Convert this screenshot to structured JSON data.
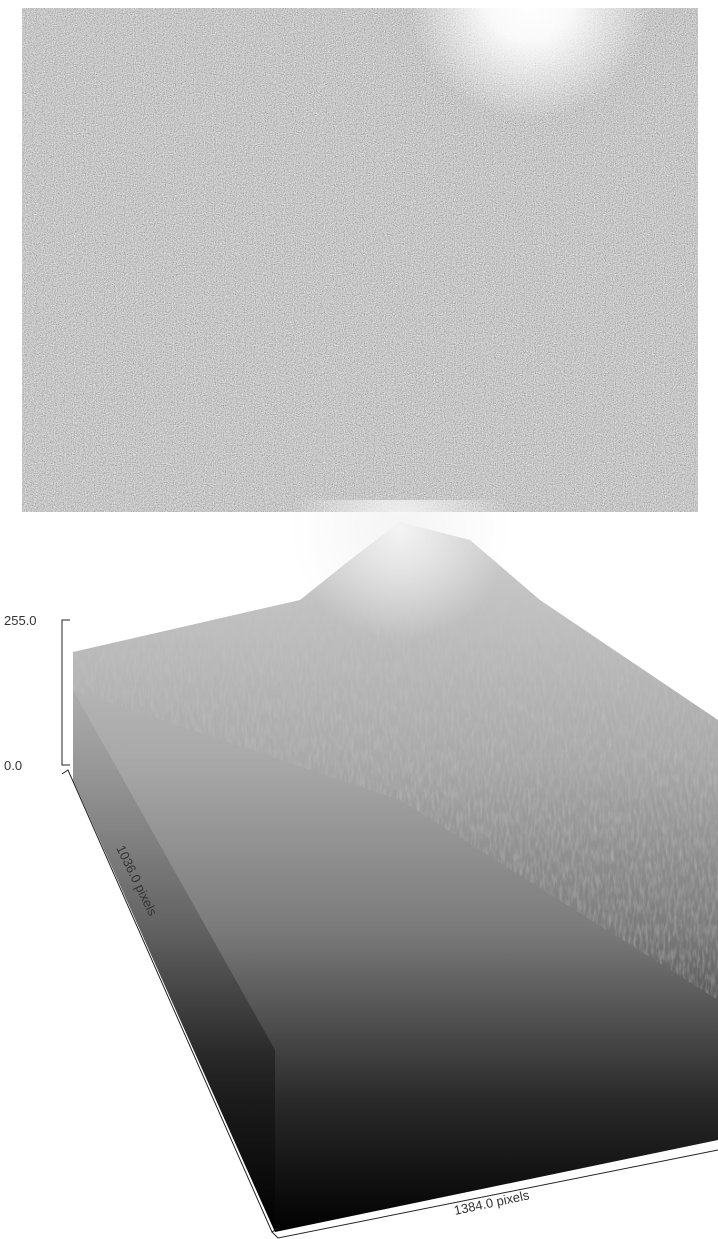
{
  "surface_plot": {
    "z_max_label": "255.0",
    "z_min_label": "0.0",
    "depth_label": "1036.0 pixels",
    "width_label": "1384.0 pixels"
  }
}
